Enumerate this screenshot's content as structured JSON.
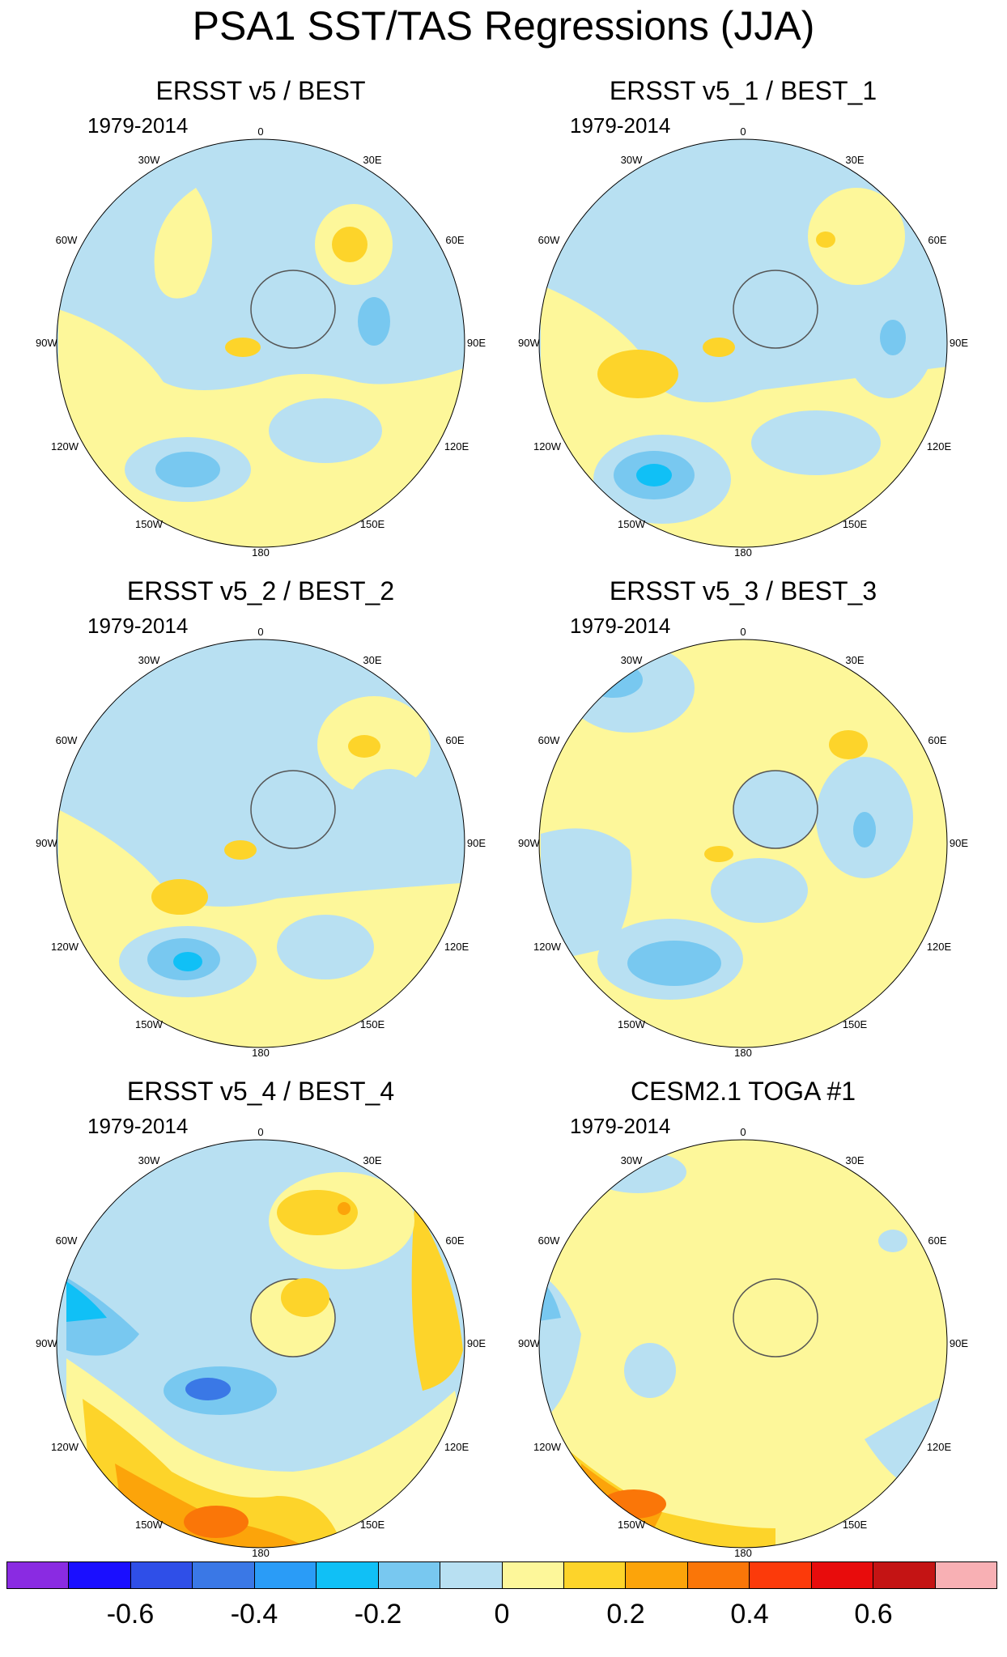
{
  "title": "PSA1 SST/TAS Regressions (JJA)",
  "lon_labels": [
    "0",
    "30E",
    "60E",
    "90E",
    "120E",
    "150E",
    "180",
    "150W",
    "120W",
    "90W",
    "60W",
    "30W"
  ],
  "panels": [
    {
      "title": "ERSST v5 / BEST",
      "period": "1979-2014"
    },
    {
      "title": "ERSST v5_1 / BEST_1",
      "period": "1979-2014"
    },
    {
      "title": "ERSST v5_2 / BEST_2",
      "period": "1979-2014"
    },
    {
      "title": "ERSST v5_3 / BEST_3",
      "period": "1979-2014"
    },
    {
      "title": "ERSST v5_4 / BEST_4",
      "period": "1979-2014"
    },
    {
      "title": "CESM2.1 TOGA #1",
      "period": "1979-2014"
    }
  ],
  "colorbar": {
    "colors": [
      "#8a2be2",
      "#1a0fff",
      "#2f4fe8",
      "#3a78e6",
      "#2a9cf7",
      "#10c0f6",
      "#78c8f0",
      "#b8e0f2",
      "#fdf79a",
      "#fdd42a",
      "#fca40a",
      "#fa7608",
      "#fc3a0a",
      "#e80c0c",
      "#c41414",
      "#f8b0b4"
    ],
    "tick_labels": [
      "-0.6",
      "-0.4",
      "-0.2",
      "0",
      "0.2",
      "0.4",
      "0.6"
    ]
  }
}
